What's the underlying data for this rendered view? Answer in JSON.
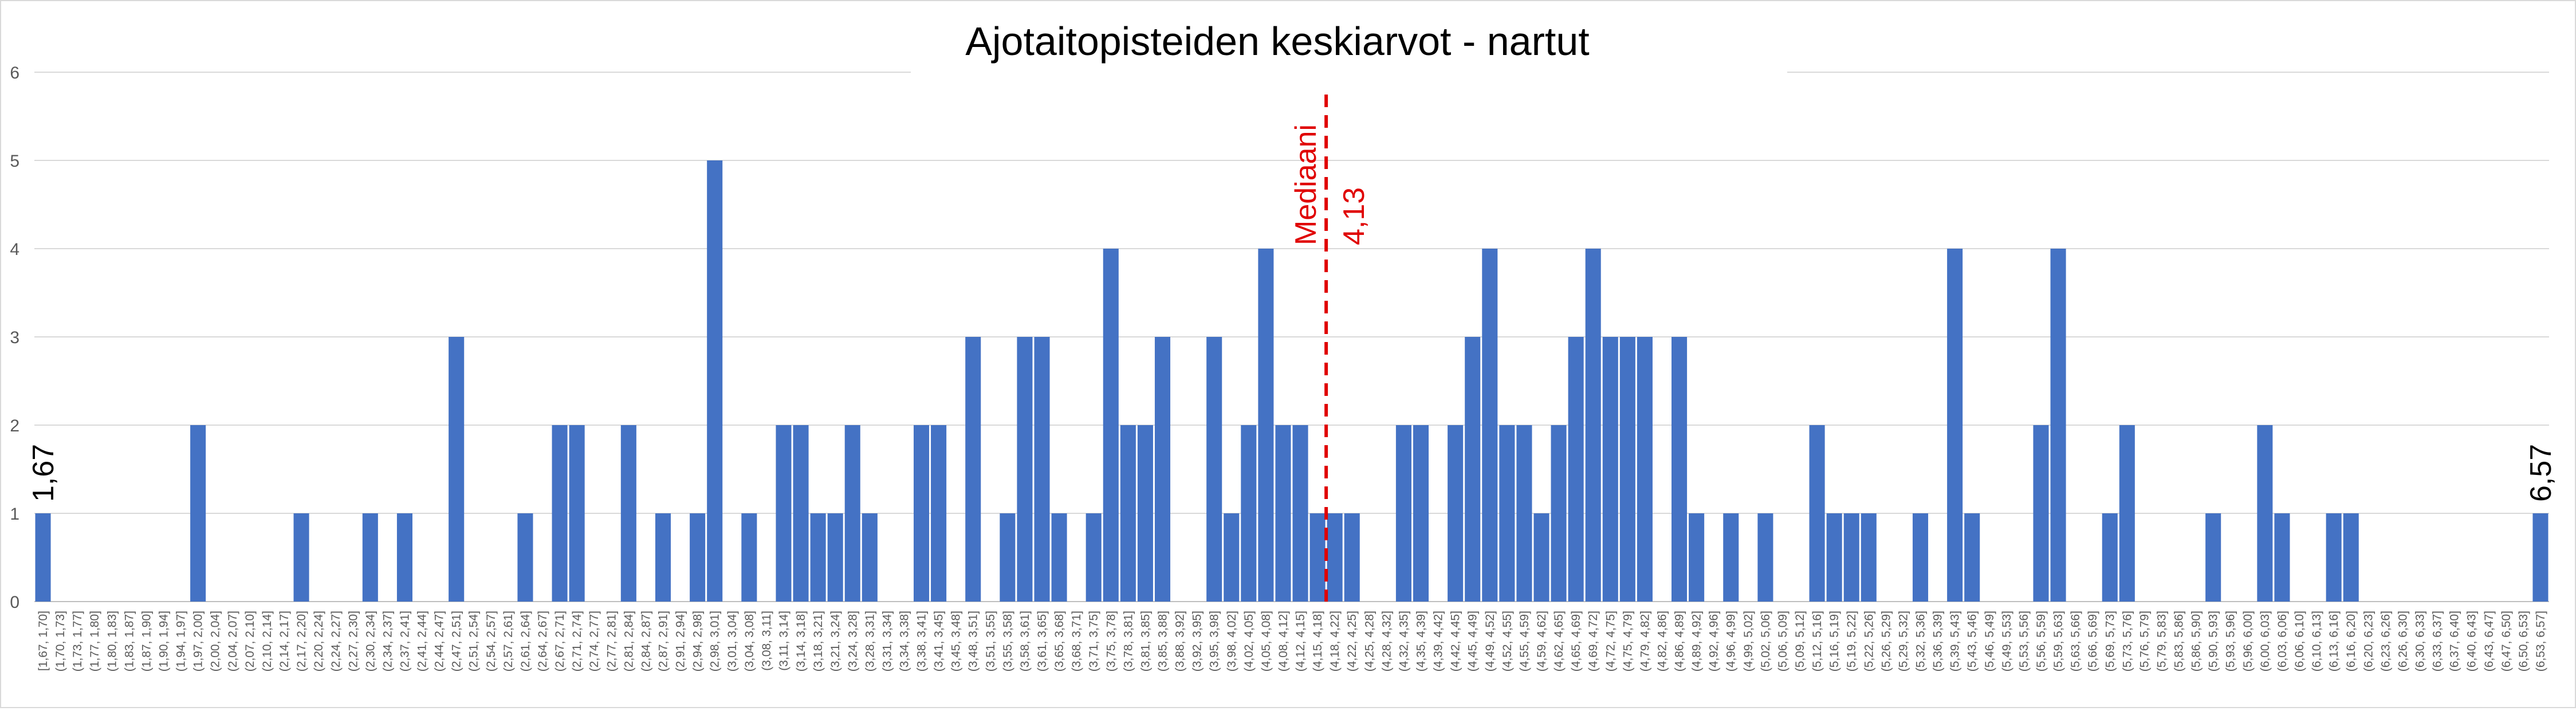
{
  "chart_data": {
    "type": "bar",
    "title": "Ajotaitopisteiden keskiarvot - nartut",
    "xlabel": "",
    "ylabel": "",
    "ylim": [
      0,
      6
    ],
    "yticks": [
      0,
      1,
      2,
      3,
      4,
      5,
      6
    ],
    "grid": true,
    "legend": "none",
    "bar_color": "#4472C4",
    "grid_color": "#d9d9d9",
    "median_color": "#e00000",
    "categories": [
      "[1,67, 1,70]",
      "(1,70, 1,73]",
      "(1,73, 1,77]",
      "(1,77, 1,80]",
      "(1,80, 1,83]",
      "(1,83, 1,87]",
      "(1,87, 1,90]",
      "(1,90, 1,94]",
      "(1,94, 1,97]",
      "(1,97, 2,00]",
      "(2,00, 2,04]",
      "(2,04, 2,07]",
      "(2,07, 2,10]",
      "(2,10, 2,14]",
      "(2,14, 2,17]",
      "(2,17, 2,20]",
      "(2,20, 2,24]",
      "(2,24, 2,27]",
      "(2,27, 2,30]",
      "(2,30, 2,34]",
      "(2,34, 2,37]",
      "(2,37, 2,41]",
      "(2,41, 2,44]",
      "(2,44, 2,47]",
      "(2,47, 2,51]",
      "(2,51, 2,54]",
      "(2,54, 2,57]",
      "(2,57, 2,61]",
      "(2,61, 2,64]",
      "(2,64, 2,67]",
      "(2,67, 2,71]",
      "(2,71, 2,74]",
      "(2,74, 2,77]",
      "(2,77, 2,81]",
      "(2,81, 2,84]",
      "(2,84, 2,87]",
      "(2,87, 2,91]",
      "(2,91, 2,94]",
      "(2,94, 2,98]",
      "(2,98, 3,01]",
      "(3,01, 3,04]",
      "(3,04, 3,08]",
      "(3,08, 3,11]",
      "(3,11, 3,14]",
      "(3,14, 3,18]",
      "(3,18, 3,21]",
      "(3,21, 3,24]",
      "(3,24, 3,28]",
      "(3,28, 3,31]",
      "(3,31, 3,34]",
      "(3,34, 3,38]",
      "(3,38, 3,41]",
      "(3,41, 3,45]",
      "(3,45, 3,48]",
      "(3,48, 3,51]",
      "(3,51, 3,55]",
      "(3,55, 3,58]",
      "(3,58, 3,61]",
      "(3,61, 3,65]",
      "(3,65, 3,68]",
      "(3,68, 3,71]",
      "(3,71, 3,75]",
      "(3,75, 3,78]",
      "(3,78, 3,81]",
      "(3,81, 3,85]",
      "(3,85, 3,88]",
      "(3,88, 3,92]",
      "(3,92, 3,95]",
      "(3,95, 3,98]",
      "(3,98, 4,02]",
      "(4,02, 4,05]",
      "(4,05, 4,08]",
      "(4,08, 4,12]",
      "(4,12, 4,15]",
      "(4,15, 4,18]",
      "(4,18, 4,22]",
      "(4,22, 4,25]",
      "(4,25, 4,28]",
      "(4,28, 4,32]",
      "(4,32, 4,35]",
      "(4,35, 4,39]",
      "(4,39, 4,42]",
      "(4,42, 4,45]",
      "(4,45, 4,49]",
      "(4,49, 4,52]",
      "(4,52, 4,55]",
      "(4,55, 4,59]",
      "(4,59, 4,62]",
      "(4,62, 4,65]",
      "(4,65, 4,69]",
      "(4,69, 4,72]",
      "(4,72, 4,75]",
      "(4,75, 4,79]",
      "(4,79, 4,82]",
      "(4,82, 4,86]",
      "(4,86, 4,89]",
      "(4,89, 4,92]",
      "(4,92, 4,96]",
      "(4,96, 4,99]",
      "(4,99, 5,02]",
      "(5,02, 5,06]",
      "(5,06, 5,09]",
      "(5,09, 5,12]",
      "(5,12, 5,16]",
      "(5,16, 5,19]",
      "(5,19, 5,22]",
      "(5,22, 5,26]",
      "(5,26, 5,29]",
      "(5,29, 5,32]",
      "(5,32, 5,36]",
      "(5,36, 5,39]",
      "(5,39, 5,43]",
      "(5,43, 5,46]",
      "(5,46, 5,49]",
      "(5,49, 5,53]",
      "(5,53, 5,56]",
      "(5,56, 5,59]",
      "(5,59, 5,63]",
      "(5,63, 5,66]",
      "(5,66, 5,69]",
      "(5,69, 5,73]",
      "(5,73, 5,76]",
      "(5,76, 5,79]",
      "(5,79, 5,83]",
      "(5,83, 5,86]",
      "(5,86, 5,90]",
      "(5,90, 5,93]",
      "(5,93, 5,96]",
      "(5,96, 6,00]",
      "(6,00, 6,03]",
      "(6,03, 6,06]",
      "(6,06, 6,10]",
      "(6,10, 6,13]",
      "(6,13, 6,16]",
      "(6,16, 6,20]",
      "(6,20, 6,23]",
      "(6,23, 6,26]",
      "(6,26, 6,30]",
      "(6,30, 6,33]",
      "(6,33, 6,37]",
      "(6,37, 6,40]",
      "(6,40, 6,43]",
      "(6,43, 6,47]",
      "(6,47, 6,50]",
      "(6,50, 6,53]",
      "(6,53, 6,57]"
    ],
    "values": [
      1,
      0,
      0,
      0,
      0,
      0,
      0,
      0,
      0,
      2,
      0,
      0,
      0,
      0,
      0,
      1,
      0,
      0,
      0,
      1,
      0,
      1,
      0,
      0,
      3,
      0,
      0,
      0,
      1,
      0,
      2,
      2,
      0,
      0,
      2,
      0,
      1,
      0,
      1,
      5,
      0,
      1,
      0,
      2,
      2,
      1,
      1,
      2,
      1,
      0,
      0,
      2,
      2,
      0,
      3,
      0,
      1,
      3,
      3,
      1,
      0,
      1,
      4,
      2,
      2,
      3,
      0,
      0,
      3,
      1,
      2,
      4,
      2,
      2,
      1,
      1,
      1,
      0,
      0,
      2,
      2,
      0,
      2,
      3,
      4,
      2,
      2,
      1,
      2,
      3,
      4,
      3,
      3,
      3,
      0,
      3,
      1,
      0,
      1,
      0,
      1,
      0,
      0,
      2,
      1,
      1,
      1,
      0,
      0,
      1,
      0,
      4,
      1,
      0,
      0,
      0,
      2,
      4,
      0,
      0,
      1,
      2,
      0,
      0,
      0,
      0,
      1,
      0,
      0,
      2,
      1,
      0,
      0,
      1,
      1,
      0,
      0,
      0,
      0,
      0,
      0,
      0,
      0,
      0,
      0,
      1
    ],
    "median": {
      "label": "Mediaani",
      "value_text": "4,13",
      "after_category_index": 74
    },
    "endpoint_labels": {
      "min": "1,67",
      "max": "6,57"
    }
  }
}
